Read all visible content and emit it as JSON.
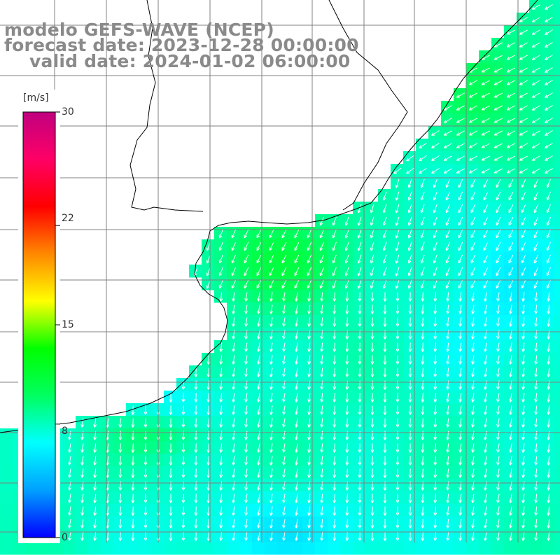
{
  "title": {
    "line1": "modelo GEFS-WAVE (NCEP)",
    "line2": "forecast date: 2023-12-28 00:00:00",
    "line3": "valid date: 2024-01-02 06:00:00"
  },
  "colorbar": {
    "unit": "[m/s]",
    "ticks": [
      "30",
      "22",
      "15",
      "8",
      "0"
    ],
    "tick_values": [
      30,
      22,
      15,
      8,
      0
    ],
    "range": [
      0,
      30
    ],
    "colors": [
      "#0000ff",
      "#00a0ff",
      "#00ffff",
      "#00ff60",
      "#00ff00",
      "#ffff00",
      "#ff8800",
      "#ff0000",
      "#ff0066",
      "#c0007f"
    ]
  },
  "map": {
    "variable": "wind speed and direction",
    "land_color": "#ffffff",
    "grid_color": "#808080",
    "arrow_color": "#ffffff",
    "coast_color": "#000000"
  }
}
